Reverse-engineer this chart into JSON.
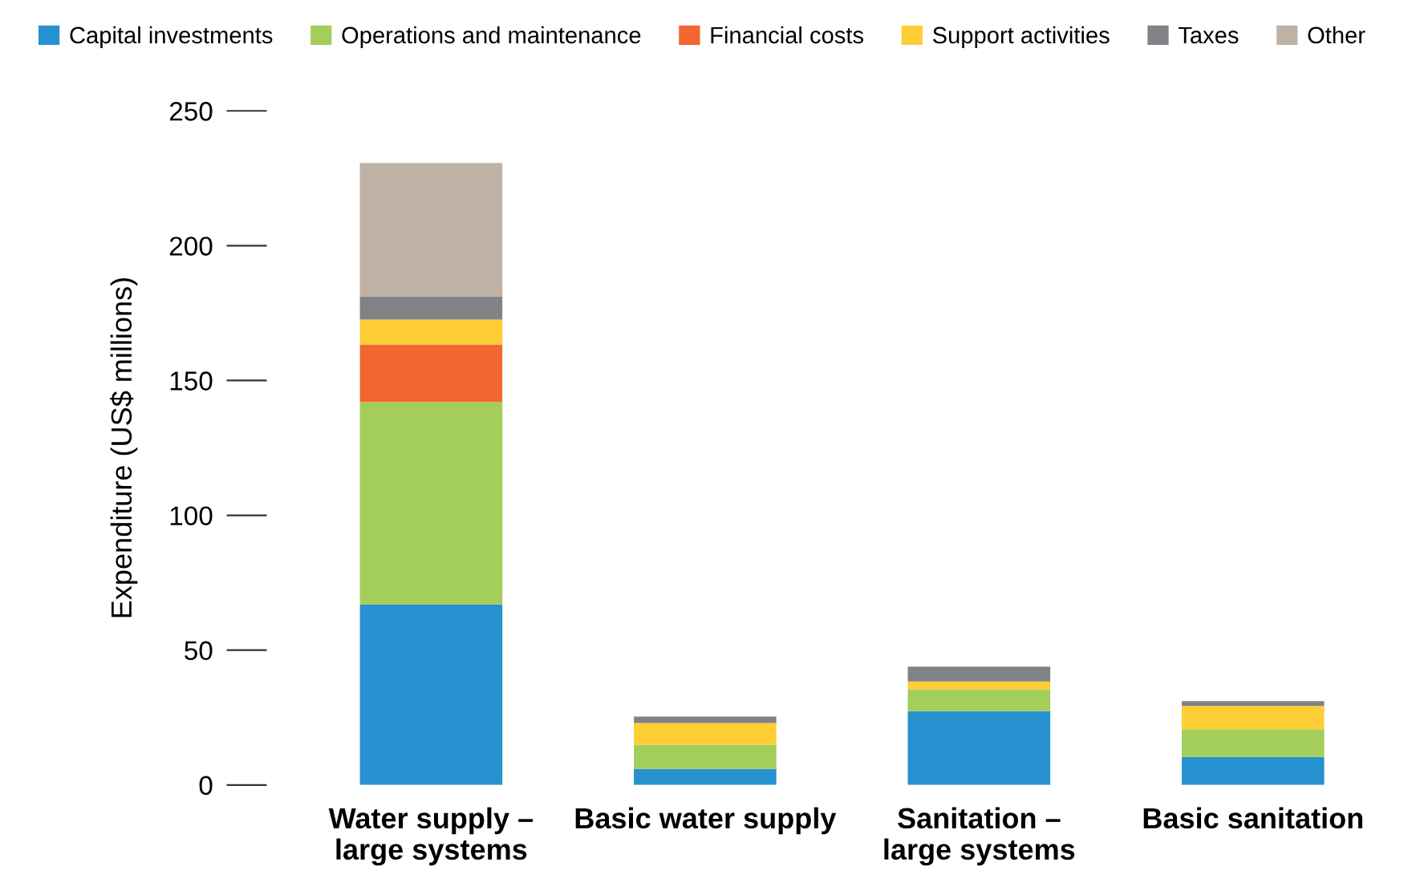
{
  "chart_data": {
    "type": "bar",
    "stacked": true,
    "ylabel": "Expenditure (US$ millions)",
    "categories": [
      "Water supply –\nlarge systems",
      "Basic water supply",
      "Sanitation –\nlarge systems",
      "Basic sanitation"
    ],
    "series": [
      {
        "name": "Capital investments",
        "color": "#2891d0",
        "values": [
          67,
          6,
          27.4,
          10.4
        ]
      },
      {
        "name": "Operations and maintenance",
        "color": "#a4ce5a",
        "values": [
          75,
          9,
          8,
          10.3
        ]
      },
      {
        "name": "Financial costs",
        "color": "#f26631",
        "values": [
          21.4,
          0,
          0,
          0
        ]
      },
      {
        "name": "Support activities",
        "color": "#ffcd34",
        "values": [
          9.2,
          8,
          3,
          8.6
        ]
      },
      {
        "name": "Taxes",
        "color": "#818286",
        "values": [
          8.6,
          2.4,
          5.5,
          1.8
        ]
      },
      {
        "name": "Other",
        "color": "#bfb2a5",
        "values": [
          49.5,
          0,
          0,
          0
        ]
      }
    ],
    "ylim": [
      0,
      250
    ],
    "yticks": [
      0,
      50,
      100,
      150,
      200,
      250
    ],
    "grid": false,
    "legend": "top"
  }
}
